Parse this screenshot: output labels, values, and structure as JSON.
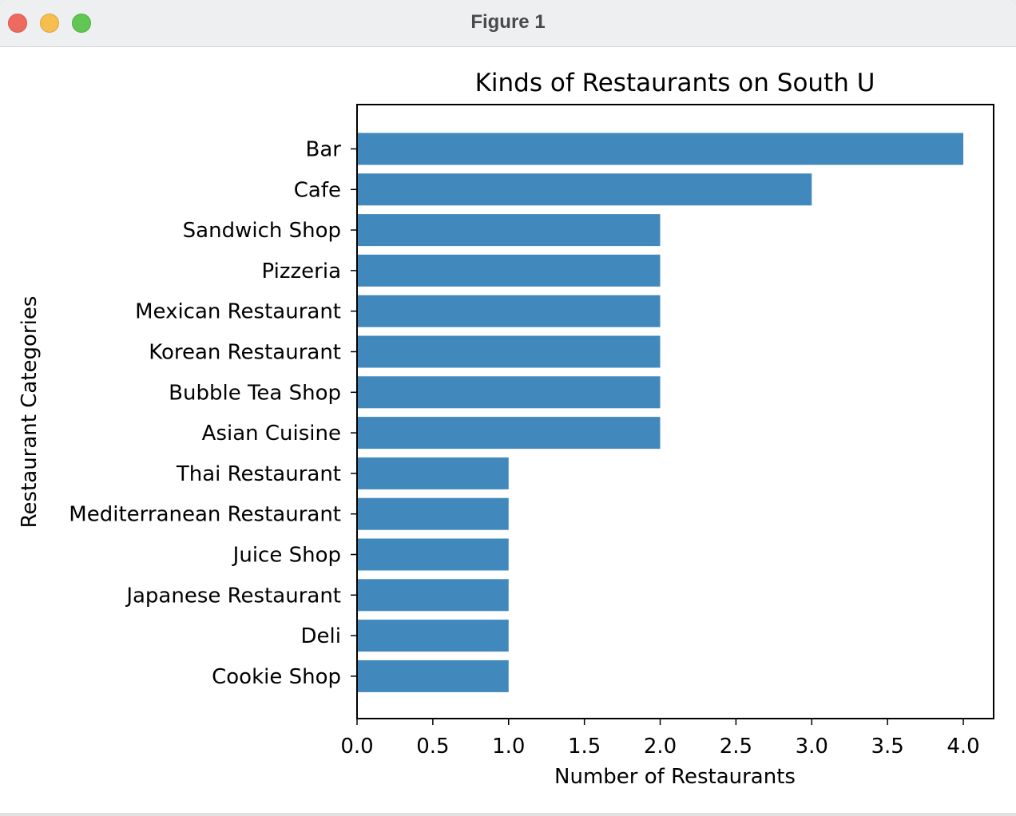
{
  "window": {
    "title": "Figure 1"
  },
  "colors": {
    "bar": "#4189bd",
    "axes": "#000000"
  },
  "chart_data": {
    "type": "bar",
    "orientation": "horizontal",
    "title": "Kinds of Restaurants on South U",
    "xlabel": "Number of Restaurants",
    "ylabel": "Restaurant Categories",
    "categories": [
      "Bar",
      "Cafe",
      "Sandwich Shop",
      "Pizzeria",
      "Mexican Restaurant",
      "Korean Restaurant",
      "Bubble Tea Shop",
      "Asian Cuisine ",
      "Thai Restaurant",
      "Mediterranean Restaurant",
      "Juice Shop",
      "Japanese Restaurant",
      "Deli",
      "Cookie Shop"
    ],
    "values": [
      4,
      3,
      2,
      2,
      2,
      2,
      2,
      2,
      1,
      1,
      1,
      1,
      1,
      1
    ],
    "xlim": [
      0,
      4.2
    ],
    "xticks": [
      "0.0",
      "0.5",
      "1.0",
      "1.5",
      "2.0",
      "2.5",
      "3.0",
      "3.5",
      "4.0"
    ],
    "grid": false,
    "legend": "none"
  }
}
